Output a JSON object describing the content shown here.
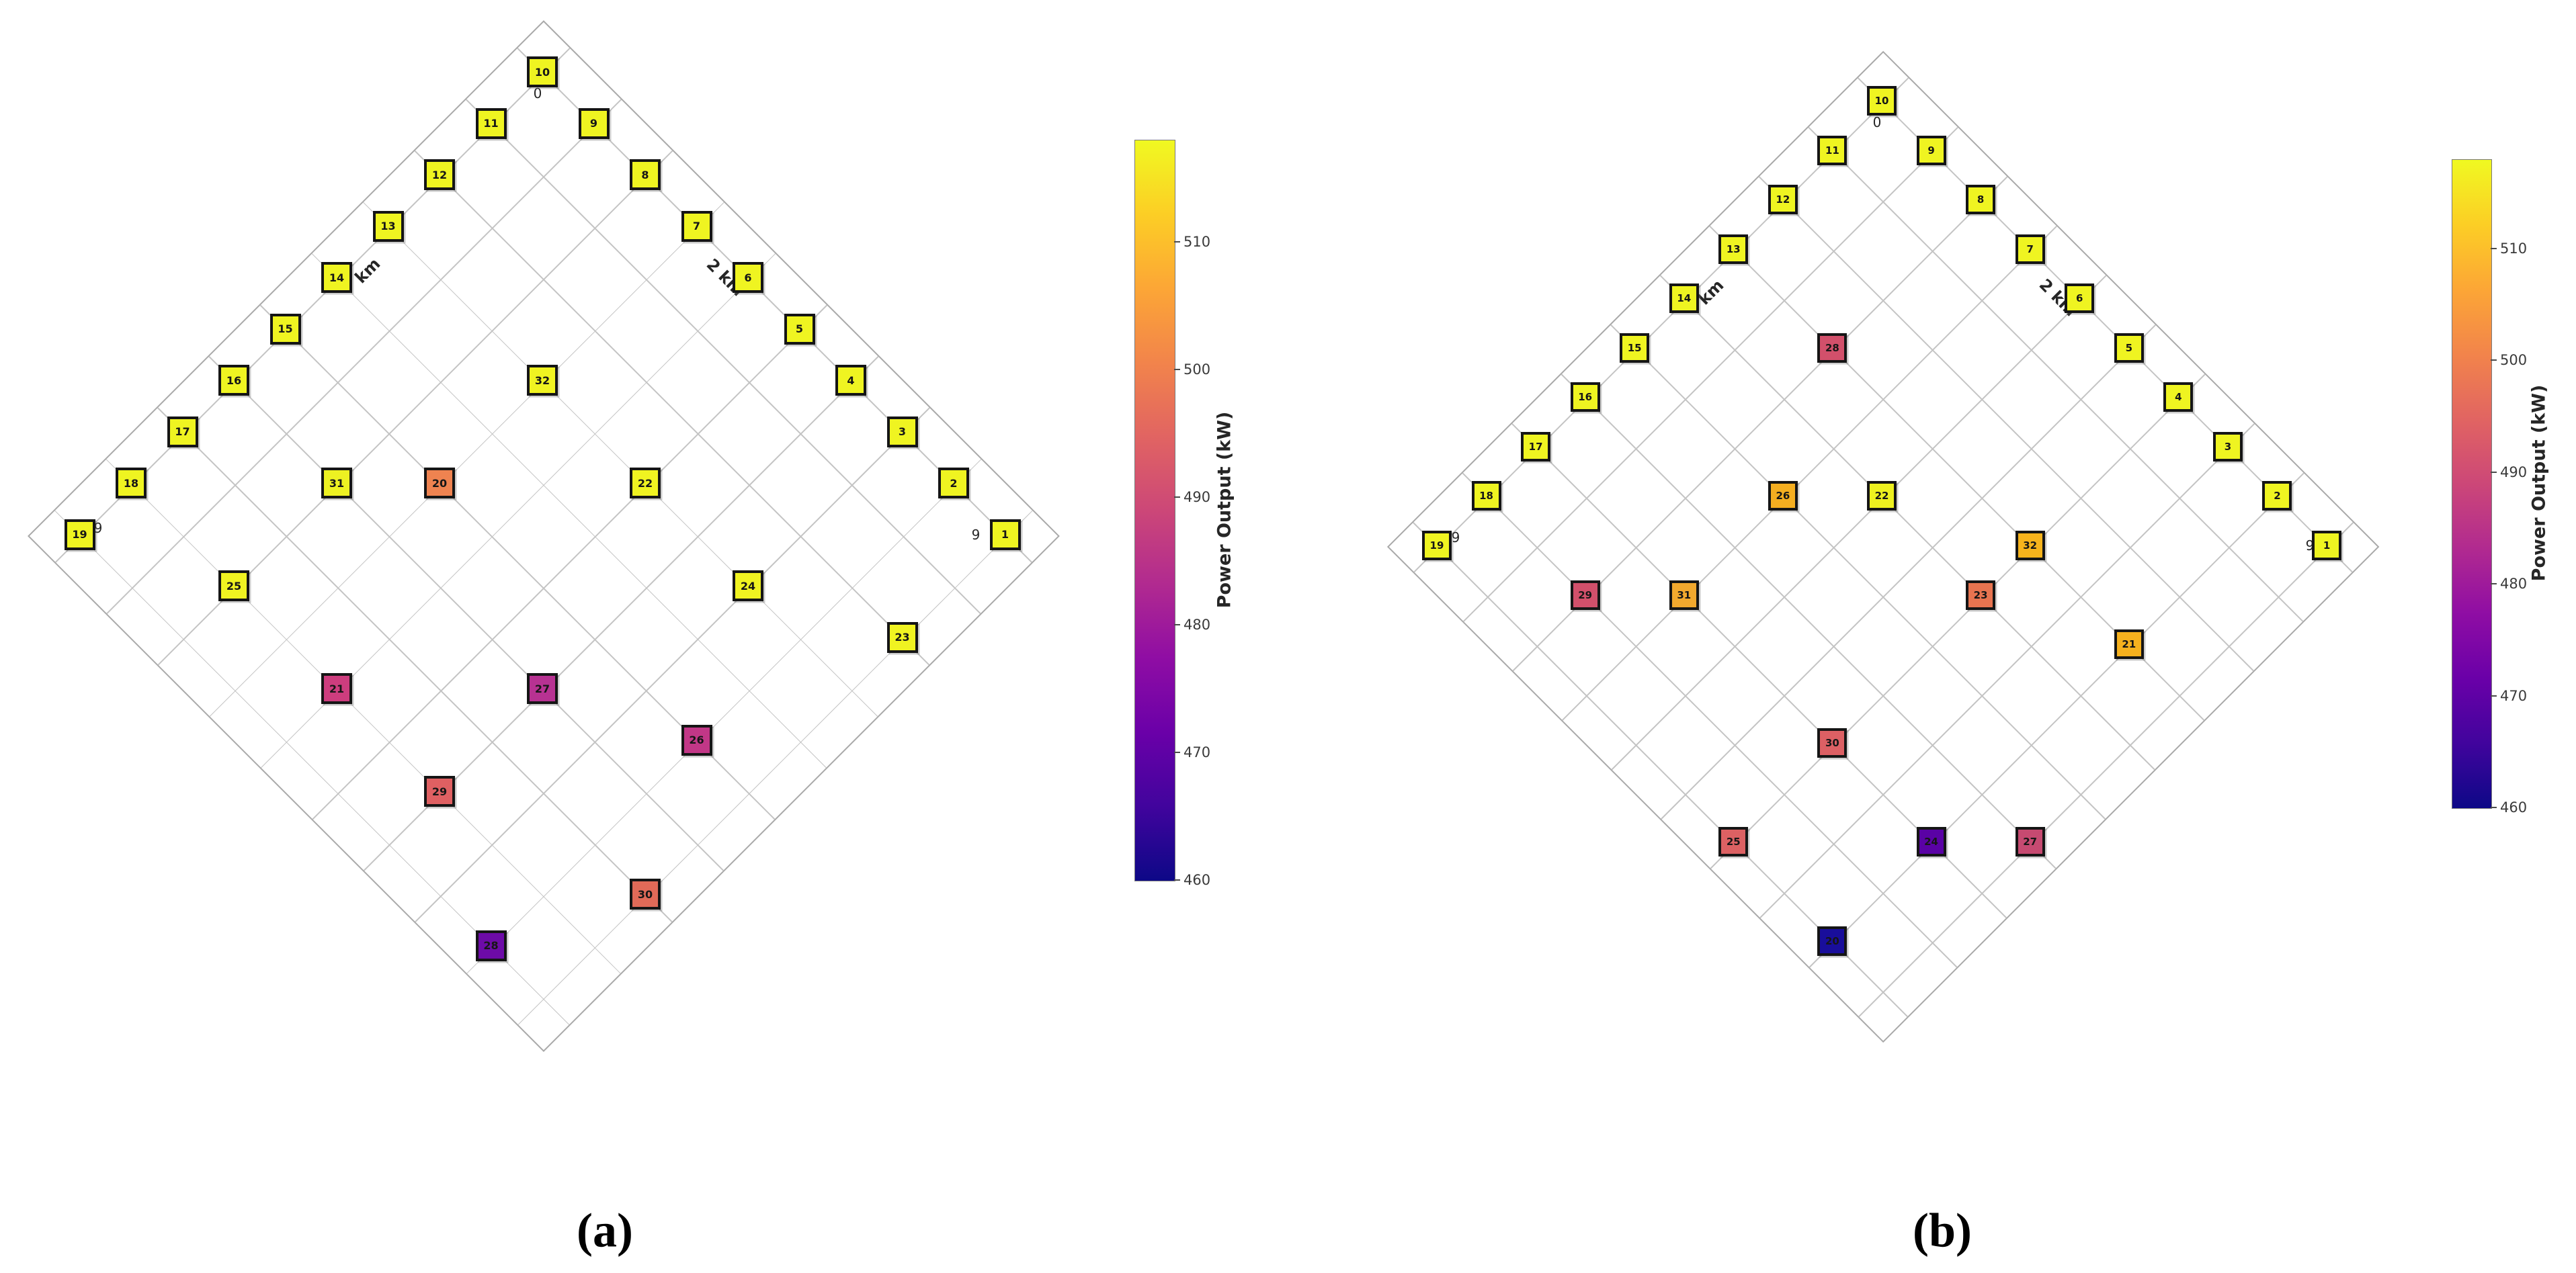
{
  "page": {
    "background": "#ffffff"
  },
  "colormap": {
    "name": "plasma",
    "stops": [
      "#0d0887",
      "#41049d",
      "#6a00a8",
      "#8f0da4",
      "#b12a90",
      "#cc4778",
      "#e16462",
      "#f2844b",
      "#fca636",
      "#fcce25",
      "#f0f921"
    ]
  },
  "chart_data": [
    {
      "type": "scatter",
      "panel": "a",
      "caption": "(a)",
      "title": "",
      "axis": {
        "origin_tick": "0",
        "end_tick": "9",
        "right_edge_label": "2 km",
        "left_edge_label": "km",
        "grid": true,
        "x_range": [
          -0.5,
          9.5
        ],
        "y_range": [
          -0.5,
          9.5
        ]
      },
      "colorbar": {
        "label": "Power Output (kW)",
        "ticks": [
          510,
          500,
          490,
          480,
          470,
          460
        ],
        "vmin": 460,
        "vmax": 518
      },
      "points": [
        {
          "id": 1,
          "x": 9,
          "y": 0,
          "power_kw": 517,
          "color": "#eff421"
        },
        {
          "id": 2,
          "x": 8,
          "y": 0,
          "power_kw": 517,
          "color": "#eff421"
        },
        {
          "id": 3,
          "x": 7,
          "y": 0,
          "power_kw": 517,
          "color": "#eff421"
        },
        {
          "id": 4,
          "x": 6,
          "y": 0,
          "power_kw": 517,
          "color": "#eff421"
        },
        {
          "id": 5,
          "x": 5,
          "y": 0,
          "power_kw": 517,
          "color": "#eff421"
        },
        {
          "id": 6,
          "x": 4,
          "y": 0,
          "power_kw": 517,
          "color": "#eff421"
        },
        {
          "id": 7,
          "x": 3,
          "y": 0,
          "power_kw": 517,
          "color": "#eff421"
        },
        {
          "id": 8,
          "x": 2,
          "y": 0,
          "power_kw": 517,
          "color": "#eff421"
        },
        {
          "id": 9,
          "x": 1,
          "y": 0,
          "power_kw": 517,
          "color": "#eff421"
        },
        {
          "id": 10,
          "x": 0,
          "y": 0,
          "power_kw": 517,
          "color": "#eff421"
        },
        {
          "id": 11,
          "x": 0,
          "y": 1,
          "power_kw": 517,
          "color": "#eff421"
        },
        {
          "id": 12,
          "x": 0,
          "y": 2,
          "power_kw": 517,
          "color": "#eff421"
        },
        {
          "id": 13,
          "x": 0,
          "y": 3,
          "power_kw": 517,
          "color": "#eff421"
        },
        {
          "id": 14,
          "x": 0,
          "y": 4,
          "power_kw": 517,
          "color": "#eff421"
        },
        {
          "id": 15,
          "x": 0,
          "y": 5,
          "power_kw": 517,
          "color": "#eff421"
        },
        {
          "id": 16,
          "x": 0,
          "y": 6,
          "power_kw": 517,
          "color": "#eff421"
        },
        {
          "id": 17,
          "x": 0,
          "y": 7,
          "power_kw": 517,
          "color": "#eff421"
        },
        {
          "id": 18,
          "x": 0,
          "y": 8,
          "power_kw": 517,
          "color": "#eff421"
        },
        {
          "id": 19,
          "x": 0,
          "y": 9,
          "power_kw": 517,
          "color": "#eff421"
        },
        {
          "id": 20,
          "x": 3,
          "y": 5,
          "power_kw": 501,
          "color": "#ef8350"
        },
        {
          "id": 21,
          "x": 4,
          "y": 8,
          "power_kw": 488,
          "color": "#cd3d7e"
        },
        {
          "id": 22,
          "x": 5,
          "y": 3,
          "power_kw": 516,
          "color": "#f0f321"
        },
        {
          "id": 23,
          "x": 9,
          "y": 2,
          "power_kw": 516,
          "color": "#f0f321"
        },
        {
          "id": 24,
          "x": 7,
          "y": 3,
          "power_kw": 516,
          "color": "#f0f321"
        },
        {
          "id": 25,
          "x": 2,
          "y": 8,
          "power_kw": 516,
          "color": "#f0f321"
        },
        {
          "id": 26,
          "x": 8,
          "y": 5,
          "power_kw": 486,
          "color": "#c23787"
        },
        {
          "id": 27,
          "x": 6,
          "y": 6,
          "power_kw": 484,
          "color": "#b73292"
        },
        {
          "id": 28,
          "x": 8,
          "y": 9,
          "power_kw": 470,
          "color": "#6d0ba7"
        },
        {
          "id": 29,
          "x": 6,
          "y": 8,
          "power_kw": 494,
          "color": "#df6062"
        },
        {
          "id": 30,
          "x": 9,
          "y": 7,
          "power_kw": 495,
          "color": "#e16a58"
        },
        {
          "id": 31,
          "x": 2,
          "y": 6,
          "power_kw": 515,
          "color": "#edf122"
        },
        {
          "id": 32,
          "x": 3,
          "y": 3,
          "power_kw": 516,
          "color": "#f0f321"
        }
      ]
    },
    {
      "type": "scatter",
      "panel": "b",
      "caption": "(b)",
      "title": "",
      "axis": {
        "origin_tick": "0",
        "end_tick": "9",
        "right_edge_label": "2 km",
        "left_edge_label": "km",
        "grid": true,
        "x_range": [
          -0.5,
          9.5
        ],
        "y_range": [
          -0.5,
          9.5
        ]
      },
      "colorbar": {
        "label": "Power Output (kW)",
        "ticks": [
          510,
          500,
          490,
          480,
          470,
          460
        ],
        "vmin": 460,
        "vmax": 518
      },
      "points": [
        {
          "id": 1,
          "x": 9,
          "y": 0,
          "power_kw": 517,
          "color": "#eff421"
        },
        {
          "id": 2,
          "x": 8,
          "y": 0,
          "power_kw": 517,
          "color": "#eff421"
        },
        {
          "id": 3,
          "x": 7,
          "y": 0,
          "power_kw": 517,
          "color": "#eff421"
        },
        {
          "id": 4,
          "x": 6,
          "y": 0,
          "power_kw": 517,
          "color": "#eff421"
        },
        {
          "id": 5,
          "x": 5,
          "y": 0,
          "power_kw": 517,
          "color": "#eff421"
        },
        {
          "id": 6,
          "x": 4,
          "y": 0,
          "power_kw": 517,
          "color": "#eff421"
        },
        {
          "id": 7,
          "x": 3,
          "y": 0,
          "power_kw": 517,
          "color": "#eff421"
        },
        {
          "id": 8,
          "x": 2,
          "y": 0,
          "power_kw": 517,
          "color": "#eff421"
        },
        {
          "id": 9,
          "x": 1,
          "y": 0,
          "power_kw": 517,
          "color": "#eff421"
        },
        {
          "id": 10,
          "x": 0,
          "y": 0,
          "power_kw": 517,
          "color": "#eff421"
        },
        {
          "id": 11,
          "x": 0,
          "y": 1,
          "power_kw": 517,
          "color": "#eff421"
        },
        {
          "id": 12,
          "x": 0,
          "y": 2,
          "power_kw": 517,
          "color": "#eff421"
        },
        {
          "id": 13,
          "x": 0,
          "y": 3,
          "power_kw": 517,
          "color": "#eff421"
        },
        {
          "id": 14,
          "x": 0,
          "y": 4,
          "power_kw": 517,
          "color": "#eff421"
        },
        {
          "id": 15,
          "x": 0,
          "y": 5,
          "power_kw": 517,
          "color": "#eff421"
        },
        {
          "id": 16,
          "x": 0,
          "y": 6,
          "power_kw": 517,
          "color": "#eff421"
        },
        {
          "id": 17,
          "x": 0,
          "y": 7,
          "power_kw": 517,
          "color": "#eff421"
        },
        {
          "id": 18,
          "x": 0,
          "y": 8,
          "power_kw": 517,
          "color": "#eff421"
        },
        {
          "id": 19,
          "x": 0,
          "y": 9,
          "power_kw": 517,
          "color": "#eff421"
        },
        {
          "id": 20,
          "x": 8,
          "y": 9,
          "power_kw": 461,
          "color": "#190e9b"
        },
        {
          "id": 21,
          "x": 8,
          "y": 3,
          "power_kw": 508,
          "color": "#f6b11e"
        },
        {
          "id": 22,
          "x": 4,
          "y": 4,
          "power_kw": 515,
          "color": "#edf01f"
        },
        {
          "id": 23,
          "x": 6,
          "y": 4,
          "power_kw": 500,
          "color": "#e77450"
        },
        {
          "id": 24,
          "x": 8,
          "y": 7,
          "power_kw": 467,
          "color": "#5a02a5"
        },
        {
          "id": 25,
          "x": 6,
          "y": 9,
          "power_kw": 494,
          "color": "#dc6163"
        },
        {
          "id": 26,
          "x": 3,
          "y": 5,
          "power_kw": 507,
          "color": "#f4ae20"
        },
        {
          "id": 27,
          "x": 9,
          "y": 6,
          "power_kw": 489,
          "color": "#c64a71"
        },
        {
          "id": 28,
          "x": 2,
          "y": 3,
          "power_kw": 491,
          "color": "#d2506b"
        },
        {
          "id": 29,
          "x": 2,
          "y": 8,
          "power_kw": 491,
          "color": "#d2506b"
        },
        {
          "id": 30,
          "x": 6,
          "y": 7,
          "power_kw": 494,
          "color": "#dc6064"
        },
        {
          "id": 31,
          "x": 3,
          "y": 7,
          "power_kw": 506,
          "color": "#f2a92e"
        },
        {
          "id": 32,
          "x": 6,
          "y": 3,
          "power_kw": 508,
          "color": "#f6b31c"
        }
      ]
    }
  ]
}
